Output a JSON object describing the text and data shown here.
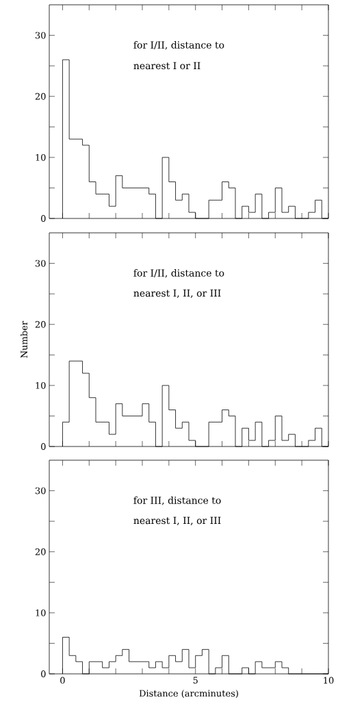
{
  "chart_data": [
    {
      "type": "histogram",
      "annotations": [
        "for I/II, distance to",
        "nearest I or II"
      ],
      "color": "#000000",
      "bins": [
        0,
        0.25,
        0.5,
        0.75,
        1,
        1.25,
        1.5,
        1.75,
        2,
        2.25,
        2.5,
        2.75,
        3,
        3.25,
        3.5,
        3.75,
        4,
        4.25,
        4.5,
        4.75,
        5,
        5.25,
        5.5,
        5.75,
        6,
        6.25,
        6.5,
        6.75,
        7,
        7.25,
        7.5,
        7.75,
        8,
        8.25,
        8.5,
        8.75,
        9,
        9.25,
        9.5,
        9.75,
        10
      ],
      "values": [
        26,
        13,
        13,
        12,
        6,
        4,
        4,
        2,
        7,
        5,
        5,
        5,
        5,
        4,
        0,
        10,
        6,
        3,
        4,
        1,
        0,
        0,
        3,
        3,
        6,
        5,
        0,
        2,
        1,
        4,
        0,
        1,
        5,
        1,
        2,
        0,
        0,
        1,
        3,
        0
      ],
      "xlim": [
        -0.5,
        10
      ],
      "ylim": [
        0,
        35
      ],
      "xticks": [
        {
          "value": 0,
          "label": null
        },
        {
          "value": 1,
          "label": null
        },
        {
          "value": 2,
          "label": null
        },
        {
          "value": 3,
          "label": null
        },
        {
          "value": 4,
          "label": null
        },
        {
          "value": 5,
          "label": null
        },
        {
          "value": 6,
          "label": null
        },
        {
          "value": 7,
          "label": null
        },
        {
          "value": 8,
          "label": null
        },
        {
          "value": 9,
          "label": null
        },
        {
          "value": 10,
          "label": null
        }
      ],
      "yticks": [
        0,
        {
          "value": 5,
          "label": null
        },
        10,
        {
          "value": 15,
          "label": null
        },
        20,
        {
          "value": 25,
          "label": null
        },
        30
      ],
      "tick_labels": "y"
    },
    {
      "type": "histogram",
      "ylabel": "Number",
      "annotations": [
        "for I/II, distance to",
        "nearest I, II, or III"
      ],
      "color": "#000000",
      "bins": [
        0,
        0.25,
        0.5,
        0.75,
        1,
        1.25,
        1.5,
        1.75,
        2,
        2.25,
        2.5,
        2.75,
        3,
        3.25,
        3.5,
        3.75,
        4,
        4.25,
        4.5,
        4.75,
        5,
        5.25,
        5.5,
        5.75,
        6,
        6.25,
        6.5,
        6.75,
        7,
        7.25,
        7.5,
        7.75,
        8,
        8.25,
        8.5,
        8.75,
        9,
        9.25,
        9.5,
        9.75,
        10
      ],
      "values": [
        4,
        14,
        14,
        12,
        8,
        4,
        4,
        2,
        7,
        5,
        5,
        5,
        7,
        4,
        0,
        10,
        6,
        3,
        4,
        1,
        0,
        0,
        4,
        4,
        6,
        5,
        0,
        3,
        1,
        4,
        0,
        1,
        5,
        1,
        2,
        0,
        0,
        1,
        3,
        0
      ],
      "xlim": [
        -0.5,
        10
      ],
      "ylim": [
        0,
        35
      ],
      "xticks": [
        {
          "value": 0,
          "label": null
        },
        {
          "value": 1,
          "label": null
        },
        {
          "value": 2,
          "label": null
        },
        {
          "value": 3,
          "label": null
        },
        {
          "value": 4,
          "label": null
        },
        {
          "value": 5,
          "label": null
        },
        {
          "value": 6,
          "label": null
        },
        {
          "value": 7,
          "label": null
        },
        {
          "value": 8,
          "label": null
        },
        {
          "value": 9,
          "label": null
        },
        {
          "value": 10,
          "label": null
        }
      ],
      "yticks": [
        0,
        {
          "value": 5,
          "label": null
        },
        10,
        {
          "value": 15,
          "label": null
        },
        20,
        {
          "value": 25,
          "label": null
        },
        30
      ],
      "tick_labels": "y"
    },
    {
      "type": "histogram",
      "xlabel": "Distance (arcminutes)",
      "annotations": [
        "for III, distance to",
        "nearest I, II, or III"
      ],
      "color": "#000000",
      "bins": [
        0,
        0.25,
        0.5,
        0.75,
        1,
        1.25,
        1.5,
        1.75,
        2,
        2.25,
        2.5,
        2.75,
        3,
        3.25,
        3.5,
        3.75,
        4,
        4.25,
        4.5,
        4.75,
        5,
        5.25,
        5.5,
        5.75,
        6,
        6.25,
        6.5,
        6.75,
        7,
        7.25,
        7.5,
        7.75,
        8,
        8.25,
        8.5,
        8.75,
        9,
        9.25,
        9.5,
        9.75,
        10
      ],
      "values": [
        6,
        3,
        2,
        0,
        2,
        2,
        1,
        2,
        3,
        4,
        2,
        2,
        2,
        1,
        2,
        1,
        3,
        2,
        4,
        1,
        3,
        4,
        0,
        1,
        3,
        0,
        0,
        1,
        0,
        2,
        1,
        1,
        2,
        1,
        0,
        0,
        0,
        0,
        0,
        0
      ],
      "xlim": [
        -0.5,
        10
      ],
      "ylim": [
        0,
        35
      ],
      "xticks": [
        0,
        {
          "value": 1,
          "label": null
        },
        {
          "value": 2,
          "label": null
        },
        {
          "value": 3,
          "label": null
        },
        {
          "value": 4,
          "label": null
        },
        5,
        {
          "value": 6,
          "label": null
        },
        {
          "value": 7,
          "label": null
        },
        {
          "value": 8,
          "label": null
        },
        {
          "value": 9,
          "label": null
        },
        10
      ],
      "yticks": [
        0,
        {
          "value": 5,
          "label": null
        },
        10,
        {
          "value": 15,
          "label": null
        },
        20,
        {
          "value": 25,
          "label": null
        },
        30
      ]
    }
  ]
}
